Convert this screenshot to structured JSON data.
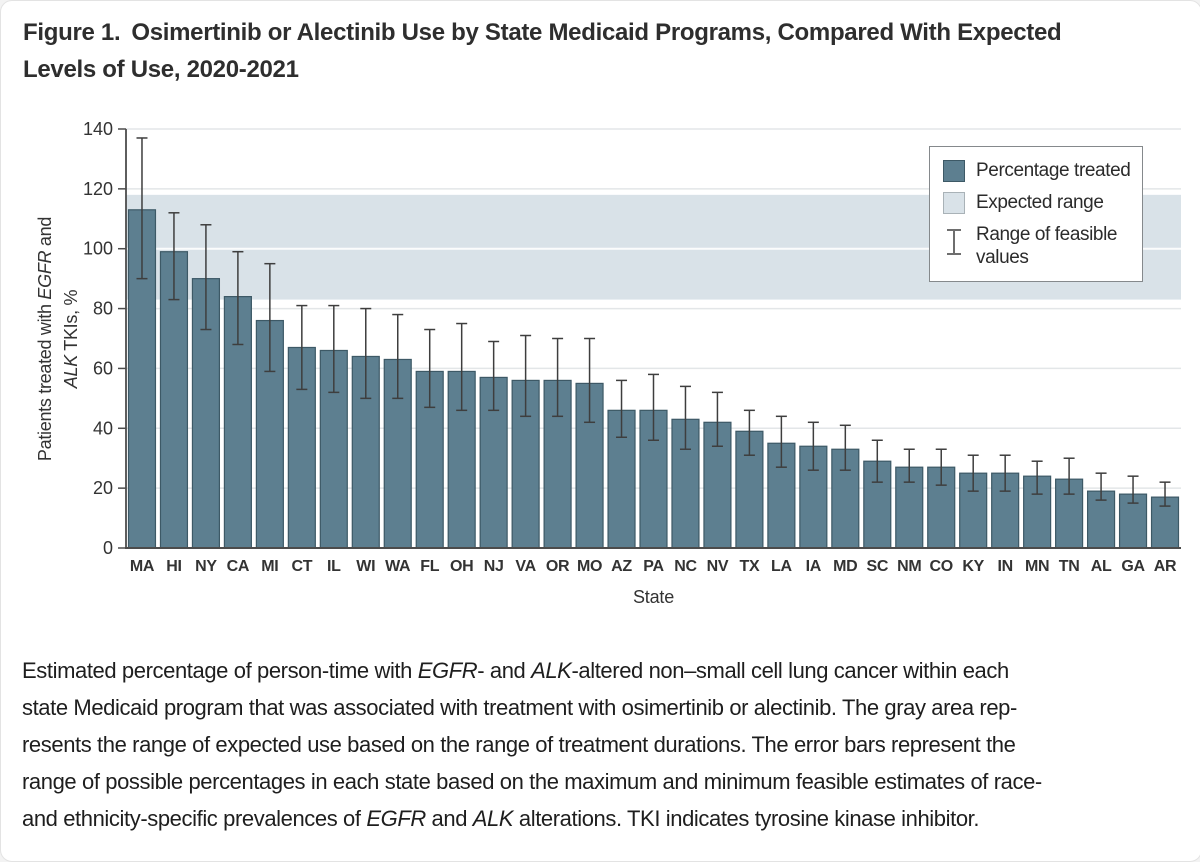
{
  "figure": {
    "label": "Figure 1.",
    "title_line1": "Osimertinib or Alectinib Use by State Medicaid Programs, Compared With Expected",
    "title_line2": "Levels of Use, 2020-2021"
  },
  "colors": {
    "bar": "#5d7f90",
    "bar_border": "#3d5966",
    "expected_band": "#d9e2e8",
    "error_bar": "#3e3e3e",
    "legend_error_glyph": "#6e6e6e",
    "axis": "#4c4c4c",
    "grid": "#e3e6e8",
    "text": "#333333",
    "band_gridline": "#ffffff"
  },
  "chart_data": {
    "type": "bar",
    "title": "Osimertinib or Alectinib Use by State Medicaid Programs, Compared With Expected Levels of Use, 2020-2021",
    "xlabel": "State",
    "ylabel": "Patients treated with EGFR and ALK TKIs, %",
    "ylabel_lines": [
      [
        {
          "t": "Patients treated with "
        },
        {
          "t": "EGFR",
          "i": true
        },
        {
          "t": " and"
        }
      ],
      [
        {
          "t": "ALK",
          "i": true
        },
        {
          "t": " TKIs, %"
        }
      ]
    ],
    "ylim": [
      0,
      140
    ],
    "yticks": [
      0,
      20,
      40,
      60,
      80,
      100,
      120,
      140
    ],
    "grid": true,
    "legend_position": "top-right",
    "expected_range": {
      "low": 83,
      "high": 118
    },
    "categories": [
      "MA",
      "HI",
      "NY",
      "CA",
      "MI",
      "CT",
      "IL",
      "WI",
      "WA",
      "FL",
      "OH",
      "NJ",
      "VA",
      "OR",
      "MO",
      "AZ",
      "PA",
      "NC",
      "NV",
      "TX",
      "LA",
      "IA",
      "MD",
      "SC",
      "NM",
      "CO",
      "KY",
      "IN",
      "MN",
      "TN",
      "AL",
      "GA",
      "AR"
    ],
    "series_name": "Percentage treated",
    "values": [
      113,
      99,
      90,
      84,
      76,
      67,
      66,
      64,
      63,
      59,
      59,
      57,
      56,
      56,
      55,
      46,
      46,
      43,
      42,
      39,
      35,
      34,
      33,
      29,
      27,
      27,
      25,
      25,
      24,
      23,
      19,
      18,
      17
    ],
    "error_low": [
      90,
      83,
      73,
      68,
      59,
      53,
      52,
      50,
      50,
      47,
      46,
      46,
      44,
      44,
      42,
      37,
      36,
      33,
      34,
      31,
      27,
      26,
      26,
      22,
      22,
      21,
      19,
      19,
      18,
      18,
      16,
      15,
      14
    ],
    "error_high": [
      137,
      112,
      108,
      99,
      95,
      81,
      81,
      80,
      78,
      73,
      75,
      69,
      71,
      70,
      70,
      56,
      58,
      54,
      52,
      46,
      44,
      42,
      41,
      36,
      33,
      33,
      31,
      31,
      29,
      30,
      25,
      24,
      22
    ]
  },
  "legend": {
    "items": [
      {
        "label": "Percentage treated",
        "swatch": "percentage-treated"
      },
      {
        "label": "Expected range",
        "swatch": "expected-range"
      },
      {
        "label": "Range of feasible values",
        "swatch": "range-of-feasible-values"
      }
    ]
  },
  "caption": {
    "lines": [
      [
        {
          "t": "Estimated percentage of person-time with "
        },
        {
          "t": "EGFR",
          "i": true
        },
        {
          "t": "- and "
        },
        {
          "t": "ALK",
          "i": true
        },
        {
          "t": "-altered non–small cell lung cancer within each"
        }
      ],
      [
        {
          "t": "state Medicaid program that was associated with treatment with osimertinib or alectinib. The gray area rep-"
        }
      ],
      [
        {
          "t": "resents the range of expected use based on the range of treatment durations. The error bars represent the"
        }
      ],
      [
        {
          "t": "range of possible percentages in each state based on the maximum and minimum feasible estimates of race-"
        }
      ],
      [
        {
          "t": "and ethnicity-specific prevalences of "
        },
        {
          "t": "EGFR",
          "i": true
        },
        {
          "t": " and "
        },
        {
          "t": "ALK",
          "i": true
        },
        {
          "t": " alterations. TKI indicates tyrosine kinase inhibitor."
        }
      ]
    ]
  }
}
